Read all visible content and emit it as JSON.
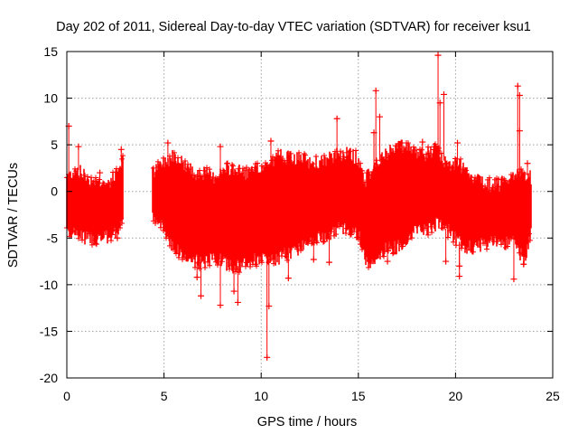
{
  "chart_data": {
    "type": "scatter",
    "title": "Day 202 of 2011, Sidereal Day-to-day VTEC variation (SDTVAR) for receiver ksu1",
    "xlabel": "GPS time / hours",
    "ylabel": "SDTVAR / TECUs",
    "xlim": [
      0,
      25
    ],
    "ylim": [
      -20,
      15
    ],
    "x_ticks": [
      0,
      5,
      10,
      15,
      20,
      25
    ],
    "y_ticks": [
      -20,
      -15,
      -10,
      -5,
      0,
      5,
      10,
      15
    ],
    "grid": true,
    "marker": "+",
    "series_color": "#ff0000",
    "data_gap": [
      2.9,
      4.4
    ],
    "band": {
      "x": [
        0.0,
        0.5,
        1.0,
        1.5,
        2.0,
        2.5,
        2.85,
        4.45,
        5.0,
        5.5,
        6.0,
        6.5,
        7.0,
        7.5,
        8.0,
        8.5,
        9.0,
        9.5,
        10.0,
        10.5,
        11.0,
        11.5,
        12.0,
        12.5,
        13.0,
        13.5,
        14.0,
        14.5,
        15.0,
        15.3,
        15.6,
        16.0,
        16.5,
        17.0,
        17.5,
        18.0,
        18.5,
        19.0,
        19.5,
        20.0,
        20.5,
        21.0,
        21.5,
        22.0,
        22.5,
        23.0,
        23.5,
        23.9
      ],
      "upper": [
        1.5,
        2.5,
        1.5,
        1.0,
        0.8,
        1.5,
        3.5,
        2.0,
        3.0,
        4.0,
        3.0,
        2.0,
        2.0,
        1.5,
        2.0,
        2.5,
        2.0,
        2.0,
        2.5,
        3.0,
        4.0,
        3.5,
        3.5,
        3.0,
        3.0,
        3.5,
        4.0,
        4.0,
        3.5,
        1.0,
        2.0,
        3.0,
        4.0,
        5.0,
        4.5,
        4.0,
        4.0,
        4.5,
        3.0,
        3.0,
        2.5,
        1.5,
        1.0,
        0.5,
        1.0,
        1.5,
        2.0,
        1.5
      ],
      "lower": [
        -4.0,
        -4.5,
        -5.0,
        -5.0,
        -5.0,
        -4.5,
        -3.0,
        -3.0,
        -4.0,
        -6.0,
        -7.0,
        -7.5,
        -7.5,
        -7.0,
        -7.5,
        -8.0,
        -8.0,
        -7.5,
        -7.0,
        -7.5,
        -7.0,
        -6.5,
        -6.0,
        -5.0,
        -5.0,
        -4.5,
        -4.0,
        -4.0,
        -4.5,
        -7.0,
        -7.5,
        -7.0,
        -6.0,
        -6.0,
        -5.0,
        -4.0,
        -4.0,
        -3.5,
        -4.0,
        -5.0,
        -6.0,
        -6.0,
        -5.5,
        -5.0,
        -5.5,
        -5.0,
        -7.5,
        -4.5
      ]
    },
    "spikes": [
      {
        "x": 0.1,
        "y": 7.0
      },
      {
        "x": 0.6,
        "y": 4.8
      },
      {
        "x": 1.7,
        "y": 2.0
      },
      {
        "x": 2.6,
        "y": -5.0
      },
      {
        "x": 2.8,
        "y": 4.5
      },
      {
        "x": 5.2,
        "y": 5.2
      },
      {
        "x": 6.7,
        "y": -9.2
      },
      {
        "x": 6.9,
        "y": -11.2
      },
      {
        "x": 7.9,
        "y": 4.8
      },
      {
        "x": 7.9,
        "y": -12.2
      },
      {
        "x": 8.6,
        "y": -10.7
      },
      {
        "x": 8.8,
        "y": -11.9
      },
      {
        "x": 10.3,
        "y": -17.8
      },
      {
        "x": 10.4,
        "y": -12.3
      },
      {
        "x": 10.5,
        "y": 5.4
      },
      {
        "x": 11.4,
        "y": -9.3
      },
      {
        "x": 12.7,
        "y": -7.3
      },
      {
        "x": 13.5,
        "y": -7.6
      },
      {
        "x": 13.9,
        "y": 7.8
      },
      {
        "x": 15.8,
        "y": 6.3
      },
      {
        "x": 15.9,
        "y": 10.8
      },
      {
        "x": 16.1,
        "y": 8.0
      },
      {
        "x": 16.5,
        "y": -7.5
      },
      {
        "x": 17.2,
        "y": 5.2
      },
      {
        "x": 18.3,
        "y": 5.3
      },
      {
        "x": 18.9,
        "y": 4.8
      },
      {
        "x": 19.1,
        "y": 14.6
      },
      {
        "x": 19.2,
        "y": 9.5
      },
      {
        "x": 19.4,
        "y": 10.4
      },
      {
        "x": 19.5,
        "y": -7.5
      },
      {
        "x": 20.1,
        "y": 5.2
      },
      {
        "x": 20.2,
        "y": -8.0
      },
      {
        "x": 20.2,
        "y": -9.1
      },
      {
        "x": 23.0,
        "y": -9.4
      },
      {
        "x": 23.2,
        "y": 11.3
      },
      {
        "x": 23.3,
        "y": 10.3
      },
      {
        "x": 23.3,
        "y": 6.5
      },
      {
        "x": 23.5,
        "y": -7.8
      },
      {
        "x": 23.7,
        "y": 3.0
      }
    ]
  }
}
